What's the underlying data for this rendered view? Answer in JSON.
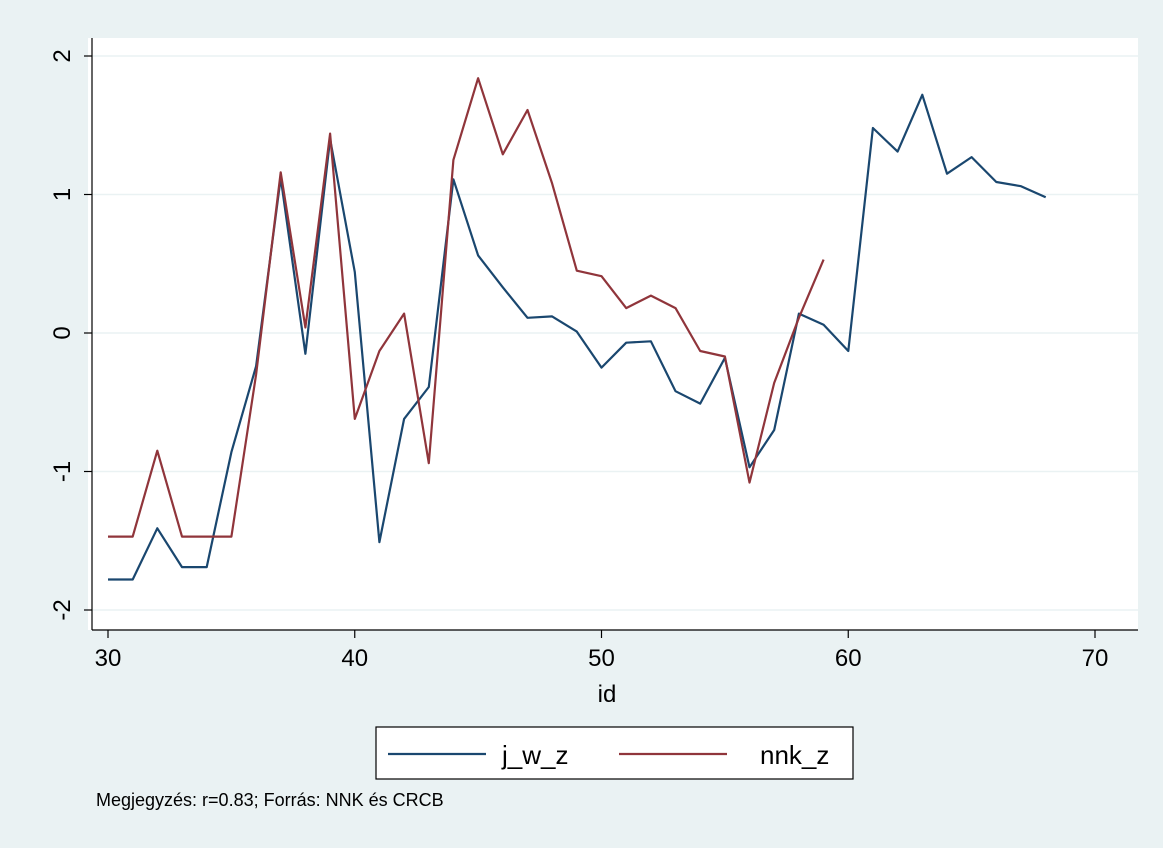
{
  "colors": {
    "background": "#eaf2f3",
    "plot_background": "#ffffff",
    "gridline": "#eaf2f3",
    "series_j_w_z": "#1a476f",
    "series_nnk_z": "#90353b"
  },
  "chart_data": {
    "type": "line",
    "title": "",
    "xlabel": "id",
    "ylabel": "",
    "xlim": [
      29,
      72
    ],
    "ylim": [
      -2.15,
      2.1
    ],
    "xticks": [
      30,
      40,
      50,
      60,
      70
    ],
    "yticks": [
      -2,
      -1,
      0,
      1,
      2
    ],
    "xtick_labels": [
      "30",
      "40",
      "50",
      "60",
      "70"
    ],
    "ytick_labels": [
      "-2",
      "-1",
      "0",
      "1",
      "2"
    ],
    "grid": true,
    "legend_position": "bottom",
    "series": [
      {
        "name": "j_w_z",
        "color": "#1a476f",
        "x": [
          30,
          31,
          32,
          33,
          34,
          35,
          36,
          37,
          38,
          39,
          40,
          41,
          42,
          43,
          44,
          45,
          46,
          47,
          48,
          49,
          50,
          51,
          52,
          53,
          54,
          55,
          56,
          57,
          58,
          59,
          60,
          61,
          62,
          63,
          64,
          65,
          66,
          67,
          68
        ],
        "values": [
          -1.78,
          -1.78,
          -1.41,
          -1.69,
          -1.69,
          -0.86,
          -0.24,
          1.12,
          -0.15,
          1.4,
          0.44,
          -1.51,
          -0.62,
          -0.39,
          1.11,
          0.56,
          0.33,
          0.11,
          0.12,
          0.01,
          -0.25,
          -0.07,
          -0.06,
          -0.42,
          -0.51,
          -0.18,
          -0.97,
          -0.7,
          0.14,
          0.06,
          -0.13,
          1.48,
          1.31,
          1.72,
          1.15,
          1.27,
          1.09,
          1.06,
          0.98
        ]
      },
      {
        "name": "nnk_z",
        "color": "#90353b",
        "x": [
          30,
          31,
          32,
          33,
          34,
          35,
          36,
          37,
          38,
          39,
          40,
          41,
          42,
          43,
          44,
          45,
          46,
          47,
          48,
          49,
          50,
          51,
          52,
          53,
          54,
          55,
          56,
          57,
          58,
          59
        ],
        "values": [
          -1.47,
          -1.47,
          -0.85,
          -1.47,
          -1.47,
          -1.47,
          -0.3,
          1.16,
          0.04,
          1.44,
          -0.62,
          -0.13,
          0.14,
          -0.94,
          1.25,
          1.84,
          1.29,
          1.61,
          1.08,
          0.45,
          0.41,
          0.18,
          0.27,
          0.18,
          -0.13,
          -0.17,
          -1.08,
          -0.36,
          0.11,
          0.53
        ]
      }
    ],
    "note": "Megjegyzés: r=0.83; Forrás: NNK és CRCB"
  }
}
